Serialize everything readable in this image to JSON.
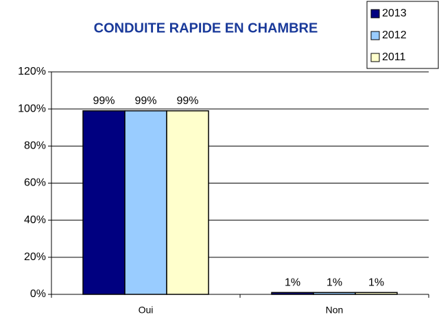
{
  "chart_data": {
    "type": "bar",
    "title": "CONDUITE RAPIDE EN CHAMBRE",
    "categories": [
      "Oui",
      "Non"
    ],
    "series": [
      {
        "name": "2013",
        "color": "#000080",
        "values": [
          99,
          1
        ],
        "value_labels": [
          "99%",
          "1%"
        ]
      },
      {
        "name": "2012",
        "color": "#99ccff",
        "values": [
          99,
          1
        ],
        "value_labels": [
          "99%",
          "1%"
        ]
      },
      {
        "name": "2011",
        "color": "#ffffcc",
        "values": [
          99,
          1
        ],
        "value_labels": [
          "99%",
          "1%"
        ]
      }
    ],
    "ylim": [
      0,
      120
    ],
    "yticks": [
      {
        "value": 0,
        "label": "0%"
      },
      {
        "value": 20,
        "label": "20%"
      },
      {
        "value": 40,
        "label": "40%"
      },
      {
        "value": 60,
        "label": "60%"
      },
      {
        "value": 80,
        "label": "80%"
      },
      {
        "value": 100,
        "label": "100%"
      },
      {
        "value": 120,
        "label": "120%"
      }
    ],
    "grid": true,
    "legend": "top-right"
  }
}
